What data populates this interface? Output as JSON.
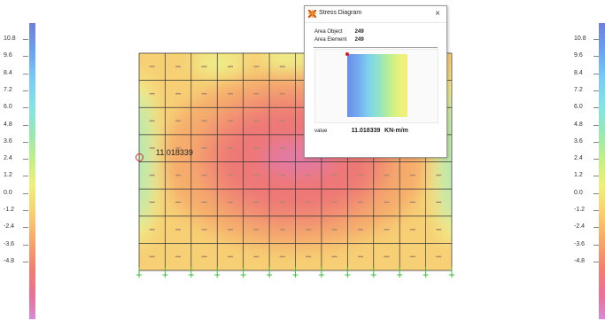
{
  "legend": {
    "ticks": [
      "10.8",
      "9.6",
      "8.4",
      "7.2",
      "6.0",
      "4.8",
      "3.6",
      "2.4",
      "1.2",
      "0.0",
      "-1.2",
      "-2.4",
      "-3.6",
      "-4.8"
    ]
  },
  "callout": {
    "value": "11.018339"
  },
  "dialog": {
    "title": "Stress Diagram",
    "close": "×",
    "area_object_label": "Area Object",
    "area_object_value": "249",
    "area_element_label": "Area Element",
    "area_element_value": "249",
    "value_label": "value",
    "value": "11.018339",
    "unit": "KN-m/m"
  },
  "colors": {
    "grid": "#333333",
    "support": "#3fbf3f",
    "accent_marker": "#d03030"
  }
}
